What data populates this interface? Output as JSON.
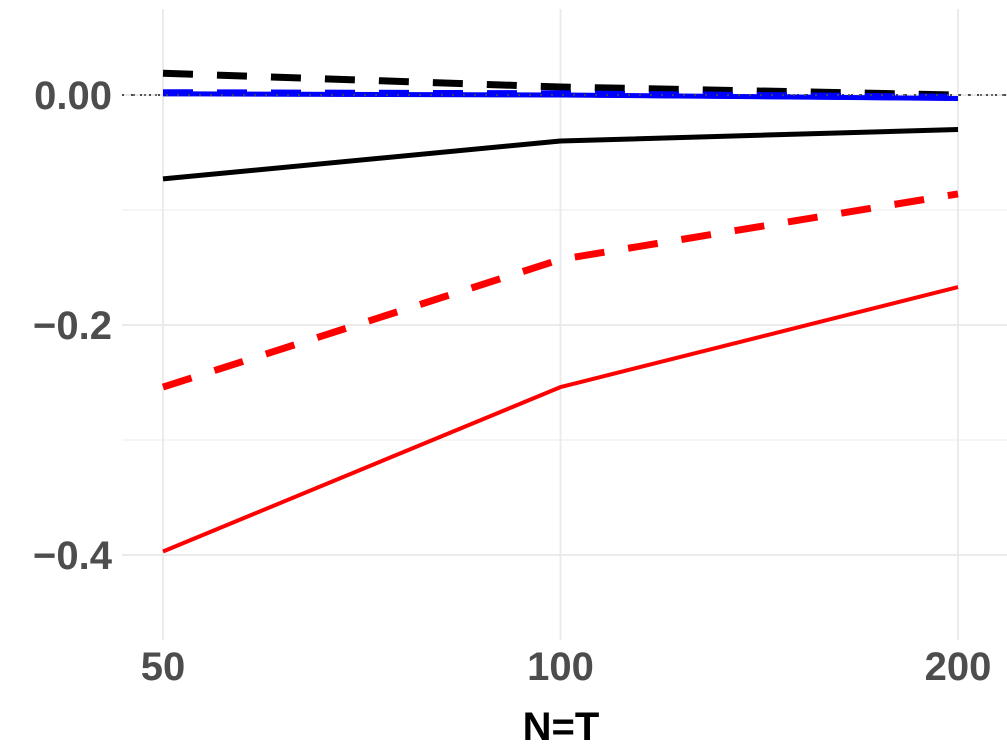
{
  "chart_data": {
    "type": "line",
    "title": "",
    "xlabel": "N=T",
    "ylabel": "",
    "x": [
      50,
      100,
      200
    ],
    "x_tick_labels": [
      "50",
      "100",
      "200"
    ],
    "x_scale": "log",
    "y_tick_labels": [
      "0.00",
      "−0.2",
      "−0.4"
    ],
    "y_ticks": [
      0.0,
      -0.2,
      -0.4
    ],
    "ylim": [
      -0.47,
      0.075
    ],
    "grid": true,
    "reference_line": {
      "y": 0.0,
      "style": "dotted",
      "color": "#4d4d4d"
    },
    "legend": null,
    "series": [
      {
        "name": "black-dashed",
        "color": "#000000",
        "style": "dashed",
        "values": [
          0.019,
          0.007,
          0.0
        ]
      },
      {
        "name": "blue-dashed",
        "color": "#0000ff",
        "style": "dashed",
        "values": [
          0.002,
          0.001,
          -0.002
        ]
      },
      {
        "name": "blue-solid",
        "color": "#0000ff",
        "style": "solid",
        "values": [
          0.001,
          0.0,
          -0.003
        ]
      },
      {
        "name": "black-solid",
        "color": "#000000",
        "style": "solid",
        "values": [
          -0.073,
          -0.04,
          -0.03
        ]
      },
      {
        "name": "red-dashed",
        "color": "#ff0000",
        "style": "dashed",
        "values": [
          -0.254,
          -0.143,
          -0.086
        ]
      },
      {
        "name": "red-solid",
        "color": "#ff0000",
        "style": "solid",
        "values": [
          -0.397,
          -0.254,
          -0.167
        ]
      }
    ]
  }
}
